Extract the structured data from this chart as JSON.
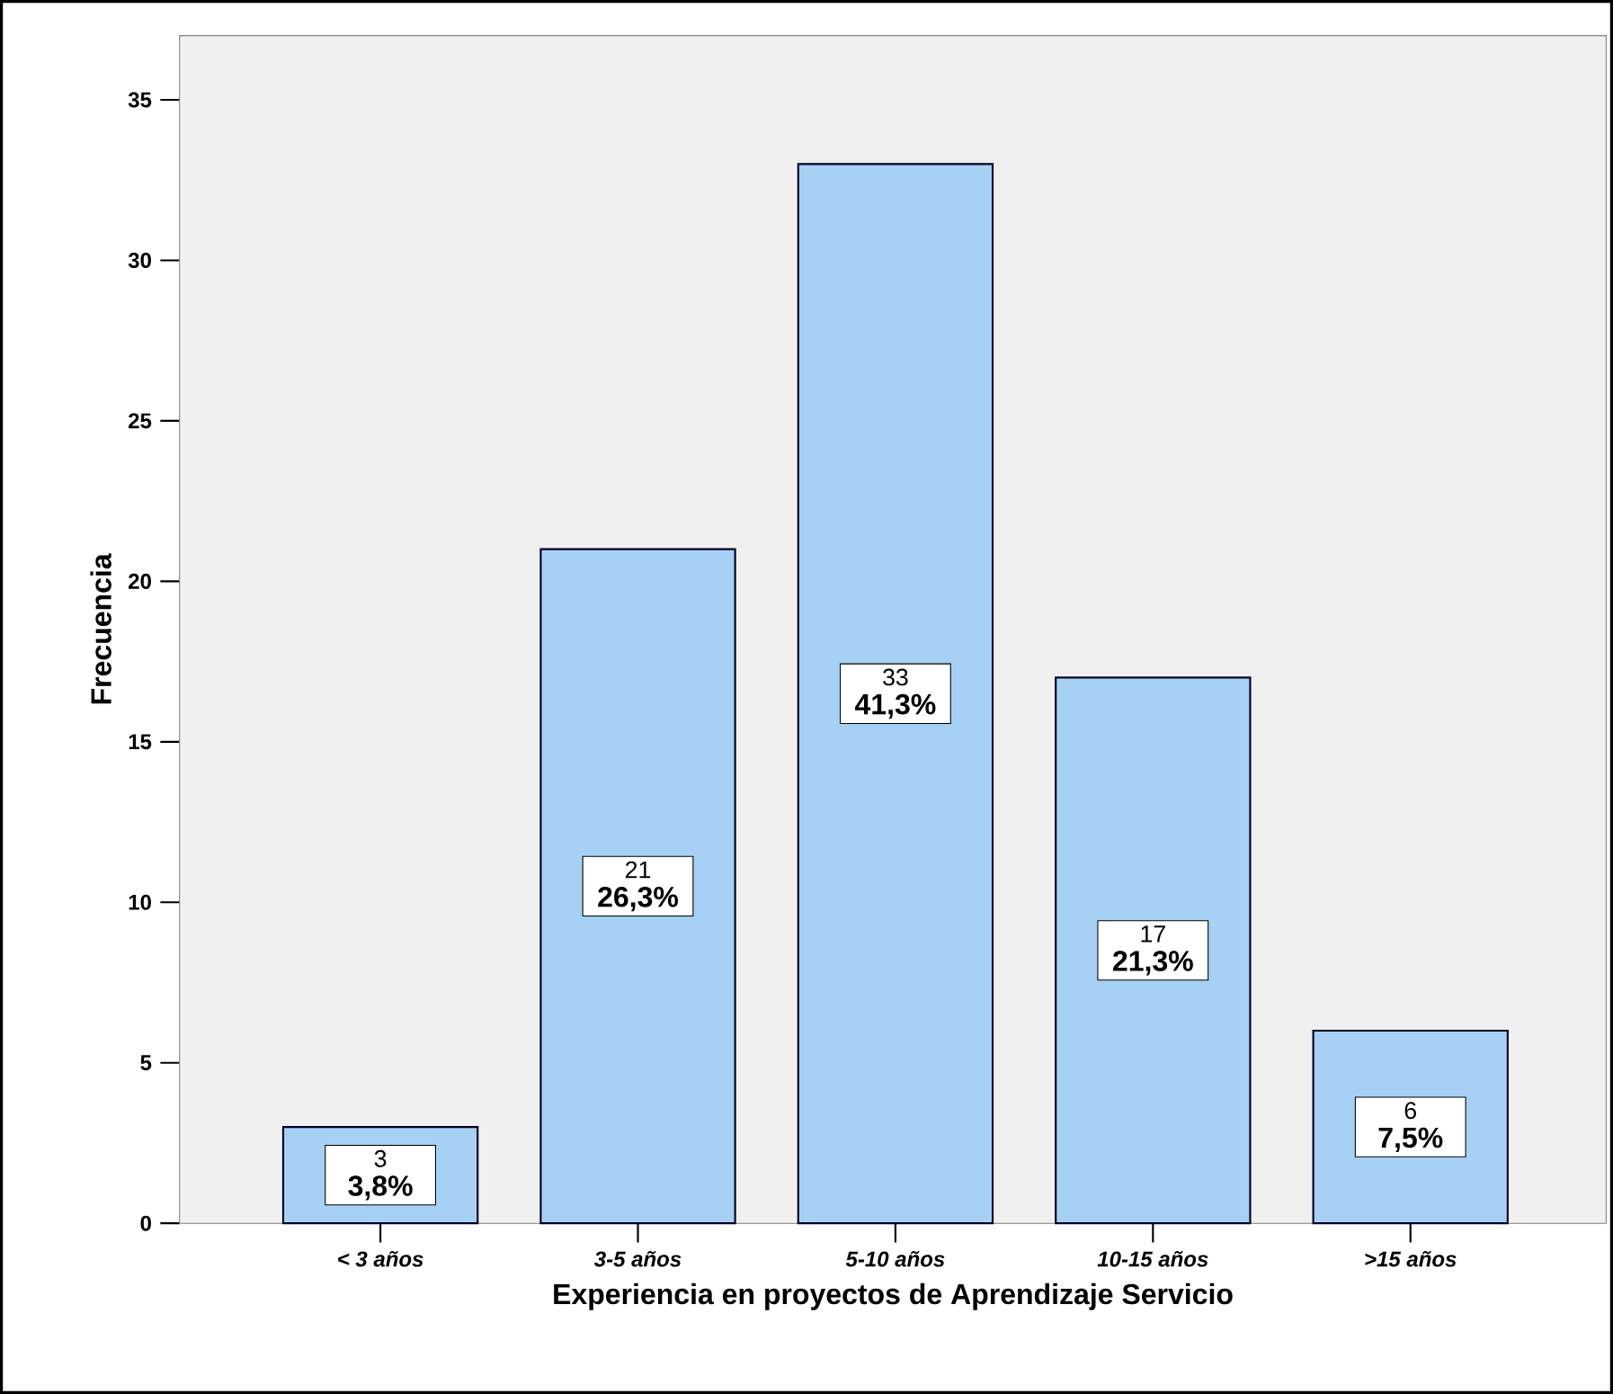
{
  "chart_data": {
    "type": "bar",
    "xlabel": "Experiencia en proyectos de Aprendizaje Servicio",
    "ylabel": "Frecuencia",
    "categories": [
      "< 3 años",
      "3-5 años",
      "5-10 años",
      "10-15 años",
      ">15 años"
    ],
    "values": [
      3,
      21,
      33,
      17,
      6
    ],
    "color": "#a6d1f5",
    "ylim": [
      0,
      37
    ],
    "yticks": [
      0,
      5,
      10,
      15,
      20,
      25,
      30,
      35
    ],
    "data_labels": true,
    "annotations": [
      "3,8%",
      "26,3%",
      "41,3%",
      "21,3%",
      "7,5%"
    ],
    "grid": false
  }
}
